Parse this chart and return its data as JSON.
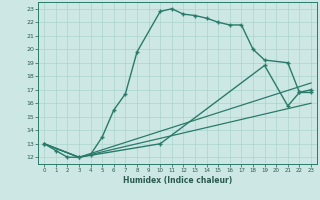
{
  "xlabel": "Humidex (Indice chaleur)",
  "xlim": [
    -0.5,
    23.5
  ],
  "ylim": [
    11.5,
    23.5
  ],
  "yticks": [
    12,
    13,
    14,
    15,
    16,
    17,
    18,
    19,
    20,
    21,
    22,
    23
  ],
  "xticks": [
    0,
    1,
    2,
    3,
    4,
    5,
    6,
    7,
    8,
    9,
    10,
    11,
    12,
    13,
    14,
    15,
    16,
    17,
    18,
    19,
    20,
    21,
    22,
    23
  ],
  "bg_color": "#cde8e4",
  "line_color": "#2a7a6a",
  "grid_color": "#aad4cc",
  "series": [
    {
      "x": [
        0,
        1,
        2,
        3,
        4,
        5,
        6,
        7,
        8,
        10,
        11,
        12,
        13,
        14,
        15,
        16,
        17,
        18,
        19,
        21,
        22,
        23
      ],
      "y": [
        13,
        12.5,
        12,
        12,
        12.2,
        13.5,
        15.5,
        16.7,
        19.8,
        22.8,
        23.0,
        22.6,
        22.5,
        22.3,
        22.0,
        21.8,
        21.8,
        20.0,
        19.2,
        19.0,
        16.8,
        17.0
      ],
      "marker": true,
      "markersize": 2.5,
      "linewidth": 1.0
    },
    {
      "x": [
        0,
        3,
        10,
        19,
        21,
        22,
        23
      ],
      "y": [
        13,
        12,
        13,
        18.8,
        15.8,
        16.8,
        16.8
      ],
      "marker": true,
      "markersize": 2.5,
      "linewidth": 1.0
    },
    {
      "x": [
        0,
        3,
        23
      ],
      "y": [
        13,
        12,
        17.5
      ],
      "marker": false,
      "linewidth": 0.9
    },
    {
      "x": [
        0,
        3,
        23
      ],
      "y": [
        13,
        12,
        16.0
      ],
      "marker": false,
      "linewidth": 0.9
    }
  ]
}
